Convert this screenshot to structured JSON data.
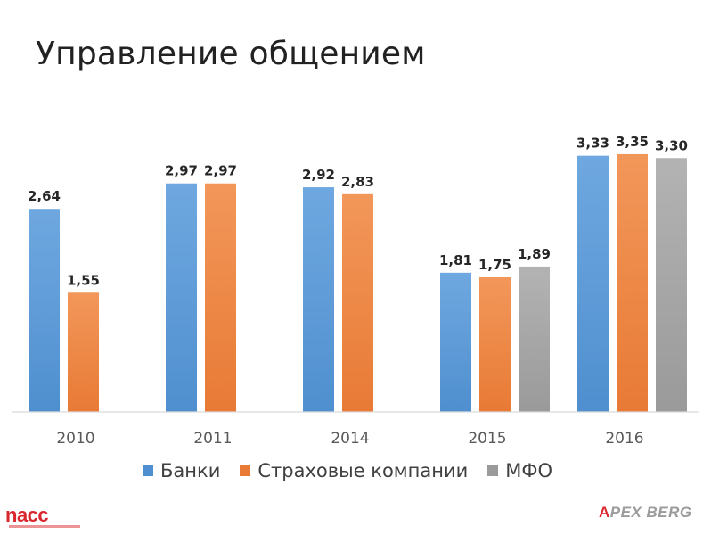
{
  "title": "Управление общением",
  "colors": {
    "banks": "#4f8fcf",
    "banks_light": "#6fa8e0",
    "insurance": "#e87a35",
    "insurance_light": "#f2975a",
    "mfo": "#9a9a9a",
    "mfo_light": "#b3b3b3"
  },
  "chart_data": {
    "type": "bar",
    "categories": [
      "2010",
      "2011",
      "2014",
      "2015",
      "2016"
    ],
    "series": [
      {
        "name": "Банки",
        "values": [
          2.64,
          2.97,
          2.92,
          1.81,
          3.33
        ],
        "labels": [
          "2,64",
          "2,97",
          "2,92",
          "1,81",
          "3,33"
        ]
      },
      {
        "name": "Страховые компании",
        "values": [
          1.55,
          2.97,
          2.83,
          1.75,
          3.35
        ],
        "labels": [
          "1,55",
          "2,97",
          "2,83",
          "1,75",
          "3,35"
        ]
      },
      {
        "name": "МФО",
        "values": [
          null,
          null,
          null,
          1.89,
          3.3
        ],
        "labels": [
          "",
          "",
          "",
          "1,89",
          "3,30"
        ]
      }
    ],
    "title": "",
    "xlabel": "",
    "ylabel": "",
    "ylim": [
      0,
      3.5
    ],
    "grid": false,
    "legend": "bottom"
  },
  "logos": {
    "left_text": "nacc",
    "right_text": "PEX BERG",
    "right_mark": "A"
  }
}
